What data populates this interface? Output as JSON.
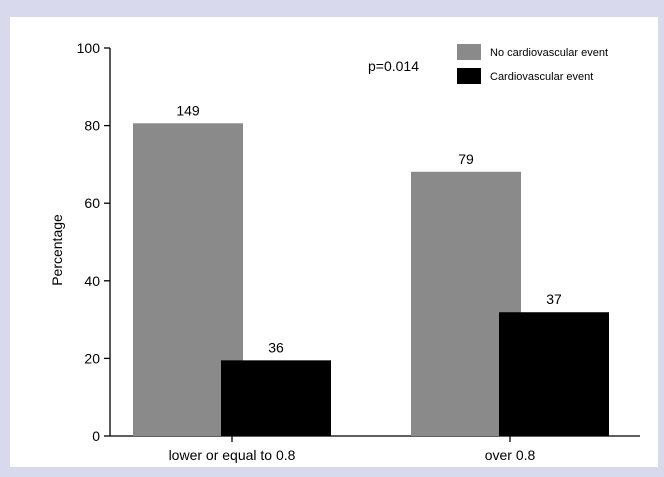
{
  "chart_data": {
    "type": "bar",
    "title": "",
    "xlabel": "",
    "ylabel": "Percentage",
    "ylim": [
      0,
      100
    ],
    "yticks": [
      0,
      20,
      40,
      60,
      80,
      100
    ],
    "categories": [
      "lower or equal to 0.8",
      "over 0.8"
    ],
    "series": [
      {
        "name": "No cardiovascular event",
        "color": "#8a8a8a",
        "values": [
          80.6,
          68.1
        ],
        "labels": [
          "149",
          "79"
        ]
      },
      {
        "name": "Cardiovascular event",
        "color": "#000000",
        "values": [
          19.5,
          31.9
        ],
        "labels": [
          "36",
          "37"
        ]
      }
    ],
    "annotation": "p=0.014",
    "legend_position": "top-right",
    "grid": false
  }
}
